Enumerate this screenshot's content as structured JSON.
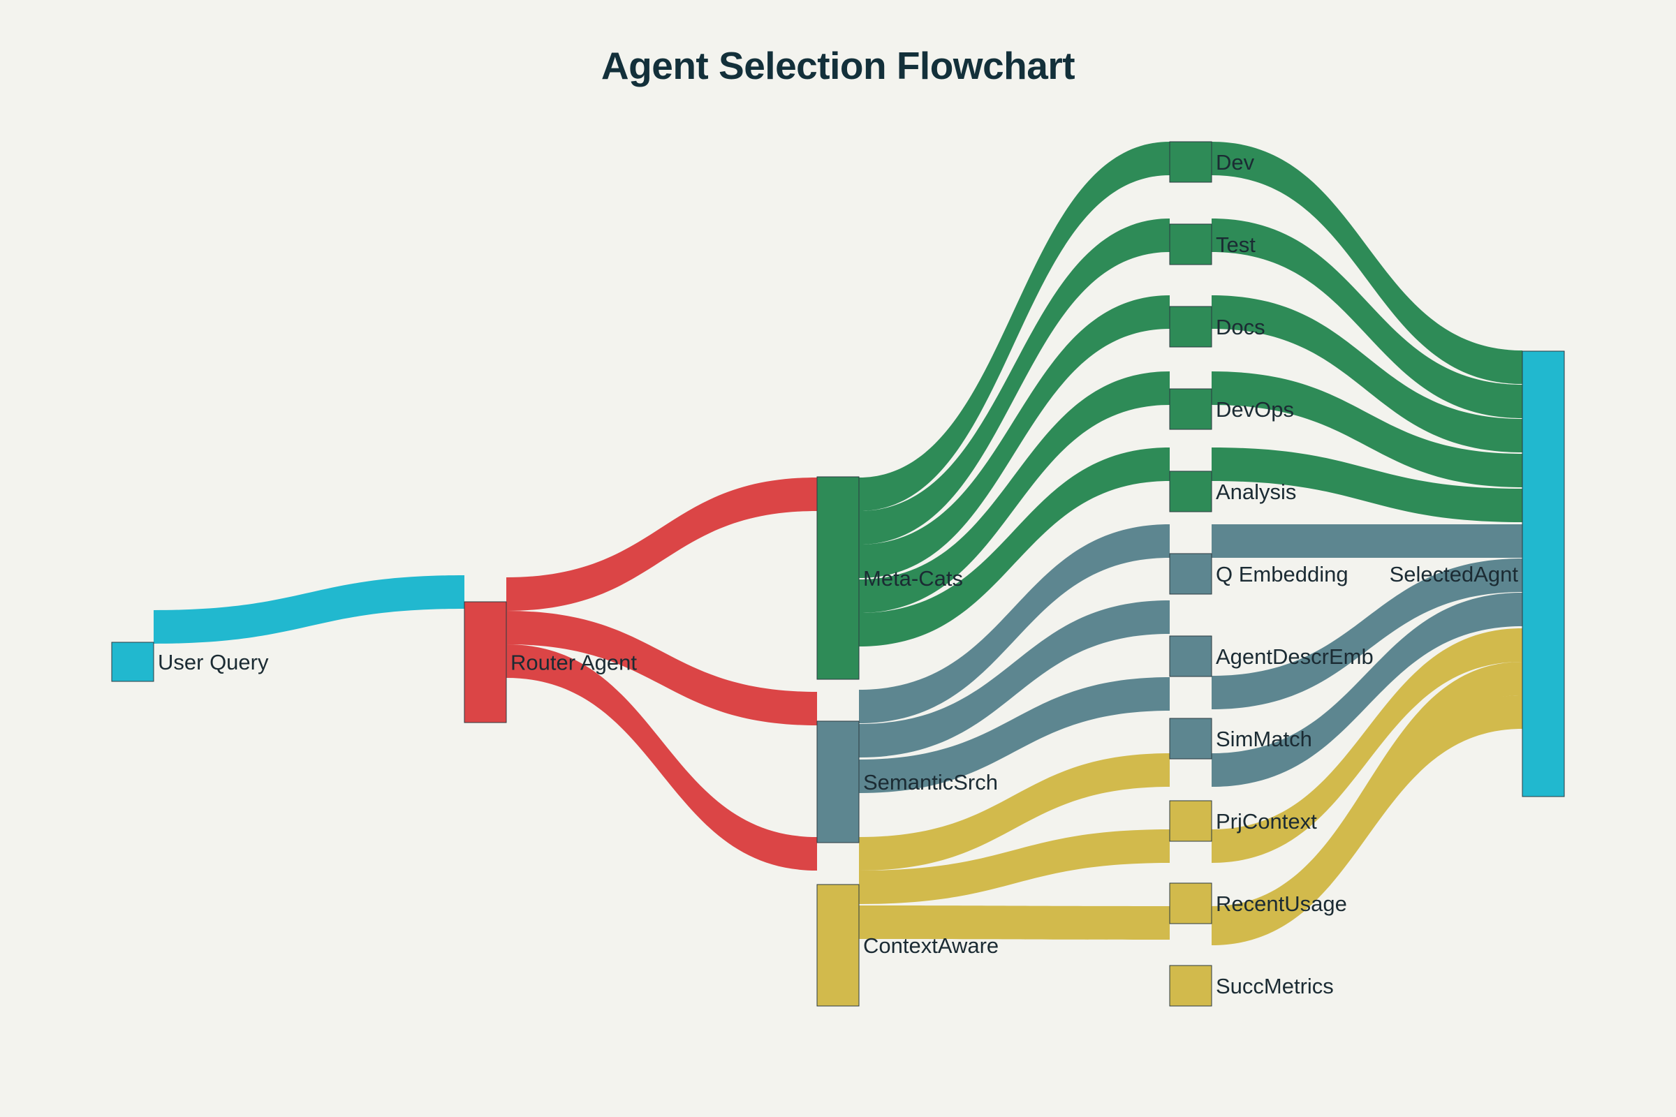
{
  "title": "Agent Selection Flowchart",
  "colors": {
    "background": "#f3f3ee",
    "cyan": "#21b8cf",
    "red": "#db4546",
    "green": "#2e8b57",
    "slate": "#5d8690",
    "gold": "#d2ba4c",
    "node_stroke": "#2b3a40"
  },
  "chart_data": {
    "type": "sankey",
    "nodes": [
      {
        "id": "user_query",
        "label": "User Query",
        "color": "cyan"
      },
      {
        "id": "router_agent",
        "label": "Router Agent",
        "color": "red"
      },
      {
        "id": "meta_cats",
        "label": "Meta-Cats",
        "color": "green"
      },
      {
        "id": "semantic_srch",
        "label": "SemanticSrch",
        "color": "slate"
      },
      {
        "id": "context_aware",
        "label": "ContextAware",
        "color": "gold"
      },
      {
        "id": "dev",
        "label": "Dev",
        "color": "green"
      },
      {
        "id": "test",
        "label": "Test",
        "color": "green"
      },
      {
        "id": "docs",
        "label": "Docs",
        "color": "green"
      },
      {
        "id": "devops",
        "label": "DevOps",
        "color": "green"
      },
      {
        "id": "analysis",
        "label": "Analysis",
        "color": "green"
      },
      {
        "id": "q_embedding",
        "label": "Q Embedding",
        "color": "slate"
      },
      {
        "id": "agent_descr_emb",
        "label": "AgentDescrEmb",
        "color": "slate"
      },
      {
        "id": "sim_match",
        "label": "SimMatch",
        "color": "slate"
      },
      {
        "id": "prj_context",
        "label": "PrjContext",
        "color": "gold"
      },
      {
        "id": "recent_usage",
        "label": "RecentUsage",
        "color": "gold"
      },
      {
        "id": "succ_metrics",
        "label": "SuccMetrics",
        "color": "gold"
      },
      {
        "id": "selected_agnt",
        "label": "SelectedAgnt",
        "color": "cyan"
      }
    ],
    "links": [
      {
        "source": "user_query",
        "target": "router_agent",
        "value": 1,
        "color": "cyan"
      },
      {
        "source": "router_agent",
        "target": "meta_cats",
        "value": 1,
        "color": "red"
      },
      {
        "source": "router_agent",
        "target": "semantic_srch",
        "value": 1,
        "color": "red"
      },
      {
        "source": "router_agent",
        "target": "context_aware",
        "value": 1,
        "color": "red"
      },
      {
        "source": "meta_cats",
        "target": "dev",
        "value": 1,
        "color": "green"
      },
      {
        "source": "meta_cats",
        "target": "test",
        "value": 1,
        "color": "green"
      },
      {
        "source": "meta_cats",
        "target": "docs",
        "value": 1,
        "color": "green"
      },
      {
        "source": "meta_cats",
        "target": "devops",
        "value": 1,
        "color": "green"
      },
      {
        "source": "meta_cats",
        "target": "analysis",
        "value": 1,
        "color": "green"
      },
      {
        "source": "semantic_srch",
        "target": "q_embedding",
        "value": 1,
        "color": "slate"
      },
      {
        "source": "semantic_srch",
        "target": "agent_descr_emb",
        "value": 1,
        "color": "slate"
      },
      {
        "source": "semantic_srch",
        "target": "sim_match",
        "value": 1,
        "color": "slate"
      },
      {
        "source": "context_aware",
        "target": "prj_context",
        "value": 1,
        "color": "gold"
      },
      {
        "source": "context_aware",
        "target": "recent_usage",
        "value": 1,
        "color": "gold"
      },
      {
        "source": "context_aware",
        "target": "succ_metrics",
        "value": 1,
        "color": "gold"
      },
      {
        "source": "dev",
        "target": "selected_agnt",
        "value": 1,
        "color": "green"
      },
      {
        "source": "test",
        "target": "selected_agnt",
        "value": 1,
        "color": "green"
      },
      {
        "source": "docs",
        "target": "selected_agnt",
        "value": 1,
        "color": "green"
      },
      {
        "source": "devops",
        "target": "selected_agnt",
        "value": 1,
        "color": "green"
      },
      {
        "source": "analysis",
        "target": "selected_agnt",
        "value": 1,
        "color": "green"
      },
      {
        "source": "q_embedding",
        "target": "selected_agnt",
        "value": 1,
        "color": "slate"
      },
      {
        "source": "agent_descr_emb",
        "target": "selected_agnt",
        "value": 1,
        "color": "slate"
      },
      {
        "source": "sim_match",
        "target": "selected_agnt",
        "value": 1,
        "color": "slate"
      },
      {
        "source": "prj_context",
        "target": "selected_agnt",
        "value": 1,
        "color": "gold"
      },
      {
        "source": "recent_usage",
        "target": "selected_agnt",
        "value": 1,
        "color": "gold"
      },
      {
        "source": "succ_metrics",
        "target": "selected_agnt",
        "value": 1,
        "color": "gold"
      }
    ]
  }
}
